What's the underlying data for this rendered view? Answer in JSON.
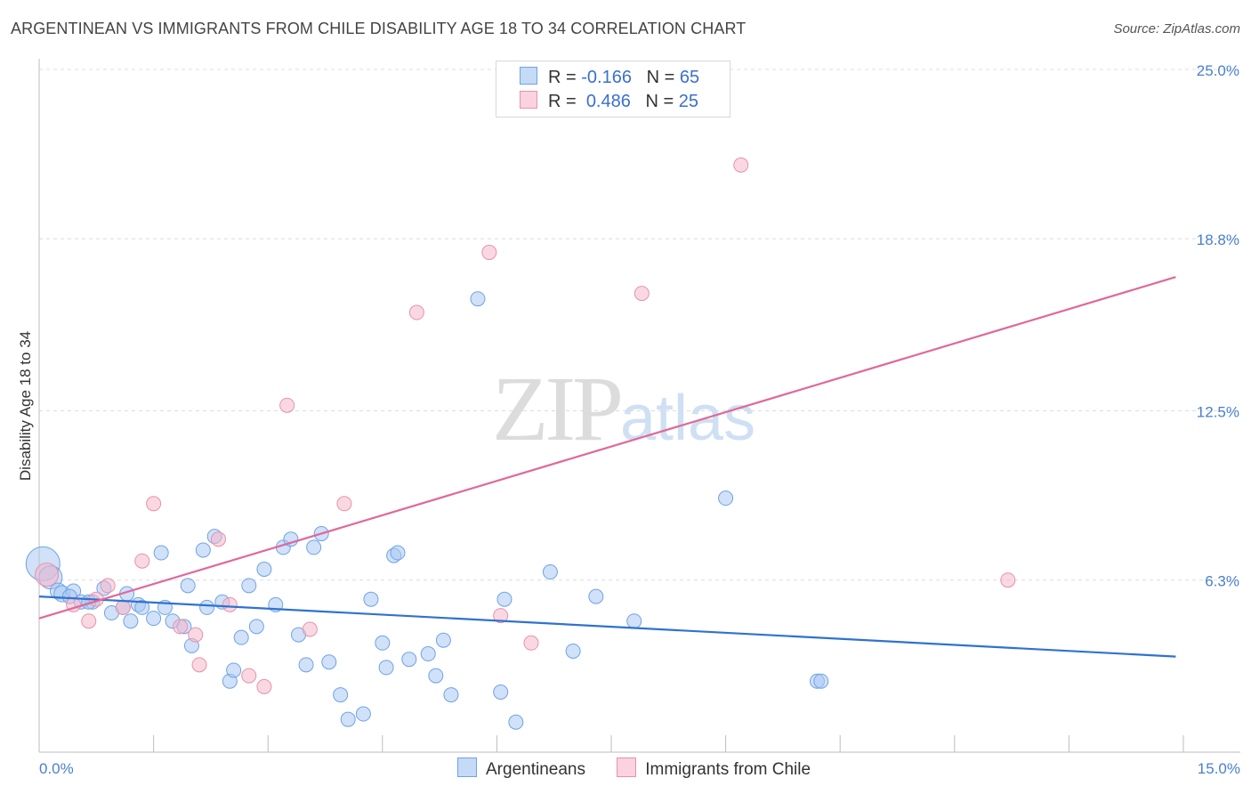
{
  "title": "ARGENTINEAN VS IMMIGRANTS FROM CHILE DISABILITY AGE 18 TO 34 CORRELATION CHART",
  "source": "Source: ZipAtlas.com",
  "watermark": {
    "zip": "ZIP",
    "atlas": "atlas"
  },
  "legend": {
    "rows": [
      {
        "r_label": "R = ",
        "r_value": "-0.166",
        "n_label": "N = ",
        "n_value": "65",
        "color": "#a9c8f2"
      },
      {
        "r_label": "R = ",
        "r_value": "0.486",
        "n_label": "N = ",
        "n_value": "25",
        "color": "#f5b8cb"
      }
    ]
  },
  "bottom_legend": [
    {
      "label": "Argentineans",
      "color": "#a9c8f2"
    },
    {
      "label": "Immigrants from Chile",
      "color": "#f5b8cb"
    }
  ],
  "chart_data": {
    "type": "scatter",
    "title": "ARGENTINEAN VS IMMIGRANTS FROM CHILE DISABILITY AGE 18 TO 34 CORRELATION CHART",
    "xlabel": "",
    "ylabel": "Disability Age 18 to 34",
    "xlim": [
      0,
      15
    ],
    "ylim": [
      0,
      25
    ],
    "x_tick_labels": [
      "0.0%",
      "15.0%"
    ],
    "y_ticks": [
      6.3,
      12.5,
      18.8,
      25.0
    ],
    "y_tick_labels": [
      "6.3%",
      "12.5%",
      "18.8%",
      "25.0%"
    ],
    "grid": true,
    "series": [
      {
        "name": "Argentineans",
        "color": "#6fa3e6",
        "fill": "#a9c8f2",
        "trend": {
          "x": [
            0,
            14.9
          ],
          "y": [
            5.7,
            3.5
          ],
          "color": "#2f72d1"
        },
        "points": [
          [
            0.05,
            6.9,
            18
          ],
          [
            0.15,
            6.4,
            12
          ],
          [
            0.25,
            5.9,
            8
          ],
          [
            0.3,
            5.8,
            8
          ],
          [
            0.45,
            5.9,
            7
          ],
          [
            0.4,
            5.7,
            7
          ],
          [
            0.55,
            5.5,
            7
          ],
          [
            0.7,
            5.5,
            7
          ],
          [
            0.85,
            6.0,
            7
          ],
          [
            0.95,
            5.1,
            7
          ],
          [
            1.1,
            5.3,
            7
          ],
          [
            1.15,
            5.8,
            7
          ],
          [
            1.2,
            4.8,
            7
          ],
          [
            1.3,
            5.4,
            7
          ],
          [
            1.5,
            4.9,
            7
          ],
          [
            1.6,
            7.3,
            7
          ],
          [
            1.65,
            5.3,
            7
          ],
          [
            1.75,
            4.8,
            7
          ],
          [
            1.9,
            4.6,
            7
          ],
          [
            1.95,
            6.1,
            7
          ],
          [
            2.0,
            3.9,
            7
          ],
          [
            2.15,
            7.4,
            7
          ],
          [
            2.2,
            5.3,
            7
          ],
          [
            2.3,
            7.9,
            7
          ],
          [
            2.4,
            5.5,
            7
          ],
          [
            2.5,
            2.6,
            7
          ],
          [
            2.55,
            3.0,
            7
          ],
          [
            2.65,
            4.2,
            7
          ],
          [
            2.75,
            6.1,
            7
          ],
          [
            2.85,
            4.6,
            7
          ],
          [
            2.95,
            6.7,
            7
          ],
          [
            3.1,
            5.4,
            7
          ],
          [
            3.2,
            7.5,
            7
          ],
          [
            3.3,
            7.8,
            7
          ],
          [
            3.4,
            4.3,
            7
          ],
          [
            3.5,
            3.2,
            7
          ],
          [
            3.6,
            7.5,
            7
          ],
          [
            3.7,
            8.0,
            7
          ],
          [
            3.8,
            3.3,
            7
          ],
          [
            3.95,
            2.1,
            7
          ],
          [
            4.05,
            1.2,
            7
          ],
          [
            4.25,
            1.4,
            7
          ],
          [
            4.35,
            5.6,
            7
          ],
          [
            4.5,
            4.0,
            7
          ],
          [
            4.55,
            3.1,
            7
          ],
          [
            4.65,
            7.2,
            7
          ],
          [
            4.7,
            7.3,
            7
          ],
          [
            4.85,
            3.4,
            7
          ],
          [
            5.1,
            3.6,
            7
          ],
          [
            5.2,
            2.8,
            7
          ],
          [
            5.3,
            4.1,
            7
          ],
          [
            5.4,
            2.1,
            7
          ],
          [
            5.75,
            16.6,
            7
          ],
          [
            6.05,
            2.2,
            7
          ],
          [
            6.1,
            5.6,
            7
          ],
          [
            6.25,
            1.1,
            7
          ],
          [
            6.7,
            6.6,
            7
          ],
          [
            7.0,
            3.7,
            7
          ],
          [
            7.3,
            5.7,
            7
          ],
          [
            7.8,
            4.8,
            7
          ],
          [
            9.0,
            9.3,
            7
          ],
          [
            10.2,
            2.6,
            7
          ],
          [
            10.25,
            2.6,
            7
          ],
          [
            1.35,
            5.3,
            7
          ],
          [
            0.65,
            5.5,
            7
          ]
        ]
      },
      {
        "name": "Immigrants from Chile",
        "color": "#e891ab",
        "fill": "#f5b8cb",
        "trend": {
          "x": [
            0,
            14.9
          ],
          "y": [
            4.9,
            17.4
          ],
          "color": "#e0689a"
        },
        "points": [
          [
            0.1,
            6.5,
            12
          ],
          [
            0.45,
            5.4,
            7
          ],
          [
            0.65,
            4.8,
            7
          ],
          [
            0.9,
            6.1,
            7
          ],
          [
            1.1,
            5.3,
            7
          ],
          [
            1.35,
            7.0,
            7
          ],
          [
            1.5,
            9.1,
            7
          ],
          [
            1.85,
            4.6,
            7
          ],
          [
            2.05,
            4.3,
            7
          ],
          [
            2.1,
            3.2,
            7
          ],
          [
            2.35,
            7.8,
            7
          ],
          [
            2.5,
            5.4,
            7
          ],
          [
            2.75,
            2.8,
            7
          ],
          [
            2.95,
            2.4,
            7
          ],
          [
            3.25,
            12.7,
            7
          ],
          [
            3.55,
            4.5,
            7
          ],
          [
            4.0,
            9.1,
            7
          ],
          [
            4.95,
            16.1,
            7
          ],
          [
            5.9,
            18.3,
            7
          ],
          [
            6.05,
            5.0,
            7
          ],
          [
            6.45,
            4.0,
            7
          ],
          [
            7.9,
            16.8,
            7
          ],
          [
            9.2,
            21.5,
            7
          ],
          [
            12.7,
            6.3,
            7
          ],
          [
            0.75,
            5.6,
            7
          ]
        ]
      }
    ]
  }
}
